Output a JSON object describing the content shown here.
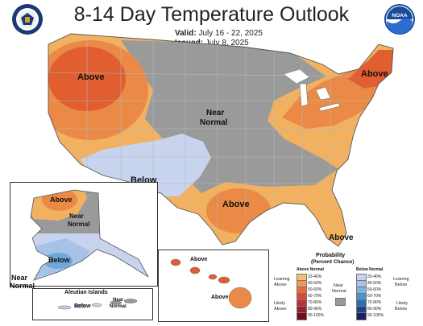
{
  "title": "8-14 Day Temperature Outlook",
  "valid": {
    "label": "Valid:",
    "value": "July 16 - 22, 2025"
  },
  "issued": {
    "label": "Issued:",
    "value": "July 8, 2025"
  },
  "logos": {
    "left": "dept-of-commerce-seal",
    "right": "noaa-logo",
    "right_text": "NOAA"
  },
  "regions": {
    "west_above": "Above",
    "near_normal_1": "Near",
    "near_normal_2": "Normal",
    "below": "Below",
    "gulf_above": "Above",
    "northeast_above": "Above",
    "florida_above": "Above"
  },
  "alaska": {
    "above": "Above",
    "near_1": "Near",
    "near_2": "Normal",
    "below": "Below",
    "near_normal_1": "Near",
    "near_normal_2": "Normal"
  },
  "aleutian": {
    "title": "Aleutian Islands",
    "below": "Below",
    "near_1": "Near",
    "near_2": "Normal"
  },
  "hawaii": {
    "above_1": "Above",
    "above_2": "Above"
  },
  "legend": {
    "title_1": "Probability",
    "title_2": "(Percent Chance)",
    "above_normal": "Above Normal",
    "below_normal": "Below Normal",
    "leaning_above_1": "Leaning",
    "leaning_above_2": "Above",
    "likely_above_1": "Likely",
    "likely_above_2": "Above",
    "near_normal_1": "Near",
    "near_normal_2": "Normal",
    "leaning_below_1": "Leaning",
    "leaning_below_2": "Below",
    "likely_below_1": "Likely",
    "likely_below_2": "Below",
    "above_bins": [
      "33-40%",
      "40-50%",
      "50-60%",
      "60-70%",
      "70-80%",
      "80-90%",
      "90-100%"
    ],
    "below_bins": [
      "33-40%",
      "40-50%",
      "50-60%",
      "60-70%",
      "70-80%",
      "80-90%",
      "90-100%"
    ],
    "above_colors": [
      "#f5be76",
      "#ef9a52",
      "#e86b3a",
      "#d54a3a",
      "#bf3038",
      "#9c1e2e",
      "#6e1020"
    ],
    "below_colors": [
      "#c8d4ee",
      "#a6c2e6",
      "#7fb3de",
      "#4b93cc",
      "#2c6fb0",
      "#20408a",
      "#19205e"
    ],
    "near_color": "#9a9a9a"
  },
  "colors": {
    "near_normal": "#9a9a9a",
    "above_33_40": "#f1b160",
    "above_40_50": "#ea8a46",
    "above_50_60": "#e05e30",
    "below_33_40": "#c8d4ee",
    "below_40_50": "#a6c2e6",
    "below_50_60": "#6fa8dc"
  }
}
